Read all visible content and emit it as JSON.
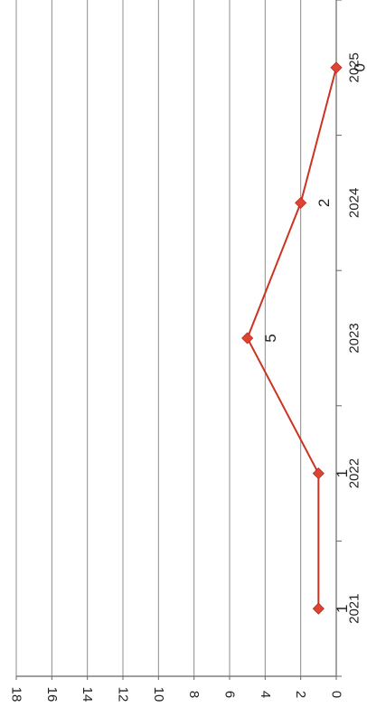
{
  "chart_data": {
    "type": "line",
    "orientation": "rotated-90-clockwise",
    "categories": [
      "2021",
      "2022",
      "2023",
      "2024",
      "2025"
    ],
    "series": [
      {
        "values": [
          1,
          1,
          5,
          2,
          0
        ]
      }
    ],
    "data_labels": [
      "1",
      "1",
      "5",
      "2",
      "0"
    ],
    "y_ticks": [
      "0",
      "2",
      "4",
      "6",
      "8",
      "10",
      "12",
      "14",
      "16",
      "18"
    ],
    "ylim": [
      0,
      18
    ],
    "grid": "horizontal-major",
    "legend": "none",
    "title": "",
    "xlabel": "",
    "ylabel": "",
    "colors": {
      "line": "#cc3322",
      "marker": "#dd4433",
      "grid": "#8c8c8c",
      "axis": "#666666"
    }
  }
}
